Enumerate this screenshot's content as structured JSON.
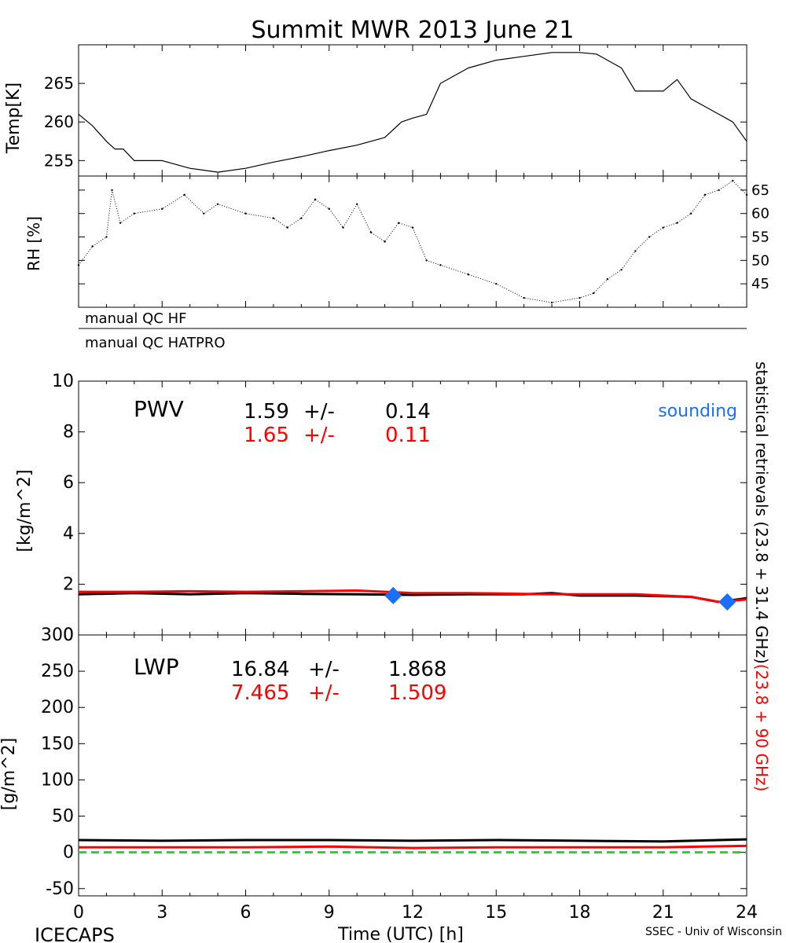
{
  "title": "Summit MWR 2013 June 21",
  "footer": {
    "left": "ICECAPS",
    "center": "Time (UTC) [h]",
    "right": "SSEC - Univ of Wisconsin"
  },
  "qc_strip": {
    "row1": "manual QC HF",
    "row2": "manual QC HATPRO"
  },
  "side_label": {
    "black": "statistical retrievals (23.8 + 31.4 GHz)",
    "red": "(23.8 + 90 GHz)"
  },
  "colors": {
    "black_series": "#000000",
    "red_series": "#ff0000",
    "sounding": "#1a6fff",
    "zero_line": "#33cc33"
  },
  "chart_data": [
    {
      "type": "line",
      "panel": "temperature",
      "ylabel": "Temp[K]",
      "xlim": [
        0,
        24
      ],
      "ylim": [
        253,
        270
      ],
      "yticks": [
        255,
        260,
        265
      ],
      "x": [
        0,
        0.5,
        1,
        1.3,
        1.6,
        2,
        3,
        4,
        5,
        6,
        7,
        8,
        9,
        10,
        11,
        11.6,
        12,
        12.5,
        13,
        14,
        15,
        16,
        17,
        18,
        18.6,
        19,
        19.5,
        20,
        21,
        21.5,
        22,
        22.5,
        23,
        23.5,
        24
      ],
      "series": [
        {
          "values": [
            261,
            259.5,
            257.5,
            256.5,
            256.5,
            255,
            255,
            254,
            253.5,
            254,
            254.8,
            255.5,
            256.3,
            257,
            258,
            260,
            260.5,
            261,
            265,
            267,
            268,
            268.5,
            269,
            269,
            268.8,
            268,
            267,
            264,
            264,
            265.5,
            263,
            262,
            261,
            260,
            257.5
          ]
        }
      ]
    },
    {
      "type": "scatter",
      "panel": "relative humidity",
      "ylabel": "RH [%]",
      "xlim": [
        0,
        24
      ],
      "ylim": [
        40,
        68
      ],
      "yticks": [
        45,
        50,
        55,
        60,
        65
      ],
      "x": [
        0,
        0.5,
        1,
        1.2,
        1.5,
        2,
        3,
        3.8,
        4.5,
        5,
        6,
        7,
        7.5,
        8,
        8.5,
        9,
        9.5,
        10,
        10.5,
        11,
        11.5,
        12,
        12.5,
        13,
        14,
        15,
        16,
        17,
        18,
        18.5,
        19,
        19.5,
        20,
        20.5,
        21,
        21.5,
        22,
        22.5,
        23,
        23.5,
        24
      ],
      "series": [
        {
          "values": [
            49,
            53,
            55,
            65,
            58,
            60,
            61,
            64,
            60,
            62,
            60,
            59,
            57,
            59,
            63,
            61,
            57,
            62,
            56,
            54,
            58,
            57,
            50,
            49,
            47,
            45,
            42,
            41,
            42,
            43,
            46,
            48,
            52,
            55,
            57,
            58,
            60,
            64,
            65,
            67,
            64
          ]
        }
      ]
    },
    {
      "type": "line",
      "panel": "PWV",
      "ylabel": "[kg/m^2]",
      "xlim": [
        0,
        24
      ],
      "ylim": [
        0,
        10
      ],
      "yticks": [
        0,
        2,
        4,
        6,
        8,
        10
      ],
      "stats": [
        {
          "name": "PWV",
          "value": "1.59",
          "pm": "+/-",
          "err": "0.14"
        },
        {
          "value": "1.65",
          "pm": "+/-",
          "err": "0.11"
        }
      ],
      "legend": [
        "sounding"
      ],
      "x": [
        0,
        2,
        4,
        6,
        8,
        10,
        12,
        14,
        16,
        17,
        18,
        20,
        22,
        23,
        24
      ],
      "series": [
        {
          "color": "black",
          "values": [
            1.6,
            1.65,
            1.6,
            1.65,
            1.62,
            1.6,
            1.58,
            1.6,
            1.6,
            1.65,
            1.55,
            1.55,
            1.5,
            1.3,
            1.45
          ]
        },
        {
          "color": "red",
          "values": [
            1.7,
            1.7,
            1.72,
            1.7,
            1.72,
            1.75,
            1.65,
            1.65,
            1.62,
            1.6,
            1.6,
            1.6,
            1.5,
            1.3,
            1.4
          ]
        }
      ],
      "sounding": {
        "x": [
          11.3,
          23.3
        ],
        "values": [
          1.55,
          1.3
        ]
      }
    },
    {
      "type": "line",
      "panel": "LWP",
      "ylabel": "[g/m^2]",
      "xlabel": "Time (UTC) [h]",
      "xlim": [
        0,
        24
      ],
      "xticks": [
        0,
        3,
        6,
        9,
        12,
        15,
        18,
        21,
        24
      ],
      "ylim": [
        -60,
        300
      ],
      "yticks": [
        -50,
        0,
        50,
        100,
        150,
        200,
        250,
        300
      ],
      "stats": [
        {
          "name": "LWP",
          "value": "16.84",
          "pm": "+/-",
          "err": "1.868"
        },
        {
          "value": "7.465",
          "pm": "+/-",
          "err": "1.509"
        }
      ],
      "x": [
        0,
        3,
        6,
        9,
        12,
        15,
        18,
        21,
        24
      ],
      "series": [
        {
          "color": "black",
          "values": [
            17,
            16,
            17,
            17,
            16,
            17,
            16,
            15,
            18
          ]
        },
        {
          "color": "red",
          "values": [
            7,
            7,
            7,
            8,
            6,
            7,
            7,
            7,
            9
          ]
        }
      ],
      "zero_line": 0
    }
  ]
}
